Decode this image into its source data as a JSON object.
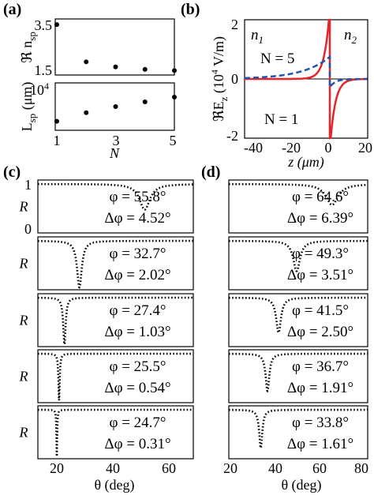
{
  "chart_data": [
    {
      "panel": "(a)",
      "type": "scatter",
      "x_tick_labels": [
        "1",
        "3",
        "5"
      ],
      "xlabel": "N",
      "xlim": [
        1,
        5
      ],
      "subplots": [
        {
          "ylabel": "ℜ n_sp",
          "ylabel_main": "ℜ n",
          "ylabel_sub": "sp",
          "y_tick_labels": [
            "3.5",
            "1.5"
          ],
          "ylim": [
            1.5,
            3.5
          ],
          "x": [
            1,
            2,
            3,
            4,
            5
          ],
          "y": [
            3.3,
            1.97,
            1.79,
            1.7,
            1.66
          ]
        },
        {
          "ylabel": "L_sp (μm)",
          "ylabel_main": "L",
          "ylabel_sub": "sp",
          "ylabel_unit": " (μm)",
          "y_tick_labels": [
            "10",
            "4"
          ],
          "ylim": [
            0,
            10000
          ],
          "x": [
            1,
            2,
            3,
            4,
            5
          ],
          "y": [
            1900,
            3700,
            5000,
            6000,
            7000
          ]
        }
      ]
    },
    {
      "panel": "(b)",
      "type": "line",
      "xlabel": "z (μm)",
      "ylabel": "ℜE_z (10^4 V/m)",
      "ylabel_main": "ℜE",
      "ylabel_sub": "z",
      "ylabel_rest": " (10",
      "ylabel_sup": "4",
      "ylabel_unit": " V/m)",
      "xlim": [
        -45,
        20
      ],
      "ylim": [
        -2,
        2
      ],
      "x_tick_labels": [
        "-40",
        "-20",
        "0",
        "20"
      ],
      "y_tick_labels": [
        "2",
        "0",
        "-2"
      ],
      "region_labels": [
        {
          "main": "n",
          "sub": "1"
        },
        {
          "main": "n",
          "sub": "2"
        }
      ],
      "annotations": [
        "N = 5",
        "N = 1"
      ],
      "series": [
        {
          "label": "N = 1",
          "color": "#e8232a",
          "style": "solid",
          "decay_left_um": 2.7,
          "decay_right_um": 2.7,
          "peak": 2.4,
          "trough": -2.4
        },
        {
          "label": "N = 5",
          "color": "#2255aa",
          "style": "dashed",
          "decay_left_um": 14.0,
          "decay_right_um": 3.0,
          "peak": 0.75,
          "trough": -0.28
        }
      ]
    },
    {
      "panel": "(c)",
      "type": "line",
      "ylabel": "R",
      "xlabel": "θ (deg)",
      "xlim": [
        18,
        73
      ],
      "ylim": [
        0,
        1
      ],
      "x_tick_labels": [
        "20",
        "40",
        "60"
      ],
      "y_tick_labels": [
        "1",
        "0"
      ],
      "dips": [
        {
          "phi": "φ = 55.8°",
          "dphi": "Δφ = 4.52°",
          "center": 55.8,
          "width": 4.52,
          "min": 0.45
        },
        {
          "phi": "φ = 32.7°",
          "dphi": "Δφ = 2.02°",
          "center": 32.7,
          "width": 2.02,
          "min": 0.0
        },
        {
          "phi": "φ = 27.4°",
          "dphi": "Δφ = 1.03°",
          "center": 27.4,
          "width": 1.03,
          "min": 0.0
        },
        {
          "phi": "φ = 25.5°",
          "dphi": "Δφ = 0.54°",
          "center": 25.5,
          "width": 0.54,
          "min": 0.0
        },
        {
          "phi": "φ = 24.7°",
          "dphi": "Δφ = 0.31°",
          "center": 24.7,
          "width": 0.31,
          "min": 0.0
        }
      ]
    },
    {
      "panel": "(d)",
      "type": "line",
      "xlabel": "θ (deg)",
      "xlim": [
        20,
        80
      ],
      "ylim": [
        0,
        1
      ],
      "x_tick_labels": [
        "20",
        "40",
        "60",
        "80"
      ],
      "dips": [
        {
          "phi": "φ = 64.6°",
          "dphi": "Δφ = 6.39°",
          "center": 64.6,
          "width": 6.39,
          "min": 0.55
        },
        {
          "phi": "φ = 49.3°",
          "dphi": "Δφ = 3.51°",
          "center": 49.3,
          "width": 3.51,
          "min": 0.35
        },
        {
          "phi": "φ = 41.5°",
          "dphi": "Δφ = 2.50°",
          "center": 41.5,
          "width": 2.5,
          "min": 0.25
        },
        {
          "phi": "φ = 36.7°",
          "dphi": "Δφ = 1.91°",
          "center": 36.7,
          "width": 1.91,
          "min": 0.2
        },
        {
          "phi": "φ = 33.8°",
          "dphi": "Δφ = 1.61°",
          "center": 33.8,
          "width": 1.61,
          "min": 0.18
        }
      ]
    }
  ]
}
